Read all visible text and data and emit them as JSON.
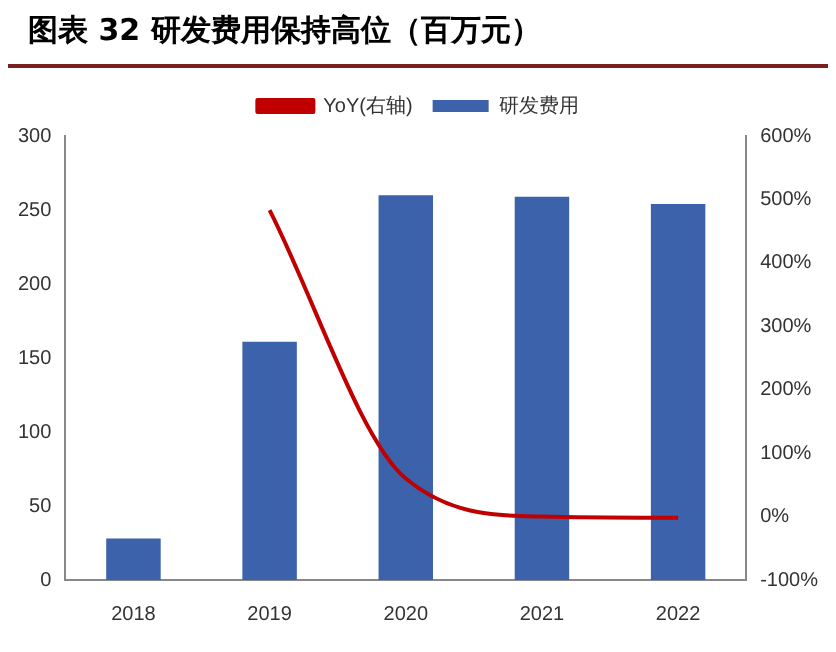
{
  "chart_data": {
    "type": "bar",
    "title": "图表 32 研发费用保持高位（百万元）",
    "categories": [
      "2018",
      "2019",
      "2020",
      "2021",
      "2022"
    ],
    "series": [
      {
        "name": "研发费用",
        "color": "#3b62aa",
        "values": [
          28,
          161,
          260,
          259,
          254
        ]
      },
      {
        "name": "YoY(右轴)",
        "type": "line",
        "axis": "y2",
        "color": "#c00000",
        "values": [
          null,
          483,
          60,
          0,
          -2
        ]
      }
    ],
    "ylim": [
      0,
      300
    ],
    "yticks": [
      0,
      50,
      100,
      150,
      200,
      250,
      300
    ],
    "y2lim": [
      -100,
      600
    ],
    "y2ticks": [
      {
        "value": -100,
        "label": "-100%"
      },
      {
        "value": 0,
        "label": "0%"
      },
      {
        "value": 100,
        "label": "100%"
      },
      {
        "value": 200,
        "label": "200%"
      },
      {
        "value": 300,
        "label": "300%"
      },
      {
        "value": 400,
        "label": "400%"
      },
      {
        "value": 500,
        "label": "500%"
      },
      {
        "value": 600,
        "label": "600%"
      }
    ],
    "grid": false,
    "legend": "top"
  }
}
